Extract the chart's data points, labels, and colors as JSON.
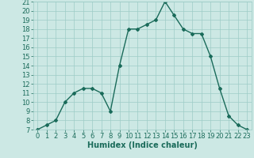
{
  "x": [
    0,
    1,
    2,
    3,
    4,
    5,
    6,
    7,
    8,
    9,
    10,
    11,
    12,
    13,
    14,
    15,
    16,
    17,
    18,
    19,
    20,
    21,
    22,
    23
  ],
  "y": [
    7,
    7.5,
    8,
    10,
    11,
    11.5,
    11.5,
    11,
    9,
    14,
    18,
    18,
    18.5,
    19,
    21,
    19.5,
    18,
    17.5,
    17.5,
    15,
    11.5,
    8.5,
    7.5,
    7
  ],
  "title": "",
  "xlabel": "Humidex (Indice chaleur)",
  "ylabel": "",
  "xlim": [
    -0.5,
    23.5
  ],
  "ylim": [
    7,
    21
  ],
  "yticks": [
    7,
    8,
    9,
    10,
    11,
    12,
    13,
    14,
    15,
    16,
    17,
    18,
    19,
    20,
    21
  ],
  "xticks": [
    0,
    1,
    2,
    3,
    4,
    5,
    6,
    7,
    8,
    9,
    10,
    11,
    12,
    13,
    14,
    15,
    16,
    17,
    18,
    19,
    20,
    21,
    22,
    23
  ],
  "line_color": "#1a6b5a",
  "marker": "D",
  "markersize": 2,
  "bg_color": "#cce8e4",
  "grid_color": "#9eccc7",
  "xlabel_fontsize": 7,
  "tick_fontsize": 6,
  "linewidth": 1.0
}
